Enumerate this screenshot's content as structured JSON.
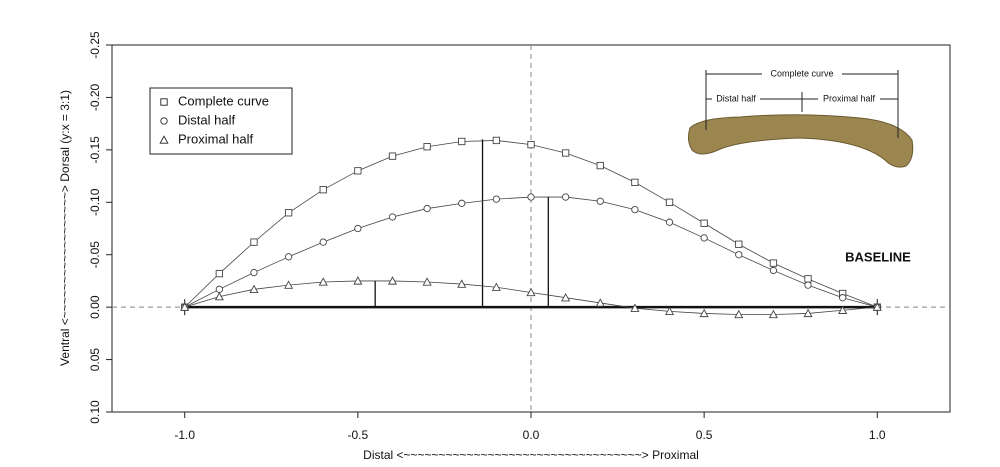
{
  "chart_data": {
    "type": "line",
    "x_label": "Distal <~~~~~~~~~~~~~~~~~~~~~~~~~~~~~~~~~~> Proximal",
    "y_label": "Ventral <~~~~~~~~~~~~~~~~~~> Dorsal (y:x = 3:1)",
    "x": [
      -1,
      -0.9,
      -0.8,
      -0.7,
      -0.6,
      -0.5,
      -0.4,
      -0.3,
      -0.2,
      -0.1,
      0,
      0.1,
      0.2,
      0.3,
      0.4,
      0.5,
      0.6,
      0.7,
      0.8,
      0.9,
      1
    ],
    "series": [
      {
        "name": "Complete curve",
        "marker": "square",
        "color": "#444444",
        "values": [
          0,
          -0.032,
          -0.062,
          -0.09,
          -0.112,
          -0.13,
          -0.144,
          -0.153,
          -0.158,
          -0.159,
          -0.155,
          -0.147,
          -0.135,
          -0.119,
          -0.1,
          -0.08,
          -0.06,
          -0.042,
          -0.027,
          -0.013,
          0
        ],
        "peak_x": -0.14,
        "peak_y": -0.16
      },
      {
        "name": "Distal half",
        "marker": "circle",
        "color": "#444444",
        "values": [
          0,
          -0.017,
          -0.033,
          -0.048,
          -0.062,
          -0.075,
          -0.086,
          -0.094,
          -0.099,
          -0.103,
          -0.105,
          -0.105,
          -0.101,
          -0.093,
          -0.081,
          -0.066,
          -0.05,
          -0.035,
          -0.021,
          -0.009,
          0
        ],
        "peak_x": 0.05,
        "peak_y": -0.105
      },
      {
        "name": "Proximal half",
        "marker": "triangle",
        "color": "#444444",
        "values": [
          0,
          -0.01,
          -0.017,
          -0.021,
          -0.024,
          -0.025,
          -0.025,
          -0.024,
          -0.022,
          -0.019,
          -0.014,
          -0.009,
          -0.004,
          0.001,
          0.004,
          0.006,
          0.007,
          0.007,
          0.006,
          0.003,
          0
        ],
        "peak_x": -0.45,
        "peak_y": -0.025
      }
    ],
    "xlim": [
      -1.21,
      1.21
    ],
    "ylim": [
      -0.25,
      0.1
    ],
    "y_inverted": true,
    "xticks": [
      {
        "value": -1,
        "label": "-1.0"
      },
      -0.5,
      {
        "value": 0,
        "label": "0.0"
      },
      0.5,
      {
        "value": 1,
        "label": "1.0"
      }
    ],
    "yticks": [
      -0.25,
      {
        "value": -0.2,
        "label": "-0.20"
      },
      -0.15,
      {
        "value": -0.1,
        "label": "-0.10"
      },
      -0.05,
      {
        "value": 0,
        "label": "0.00"
      },
      0.05,
      {
        "value": 0.1,
        "label": "0.10"
      }
    ],
    "legend": "top-left",
    "annotation": "BASELINE",
    "inset_labels": [
      "Complete curve",
      "Distal half",
      "Proximal half"
    ]
  }
}
